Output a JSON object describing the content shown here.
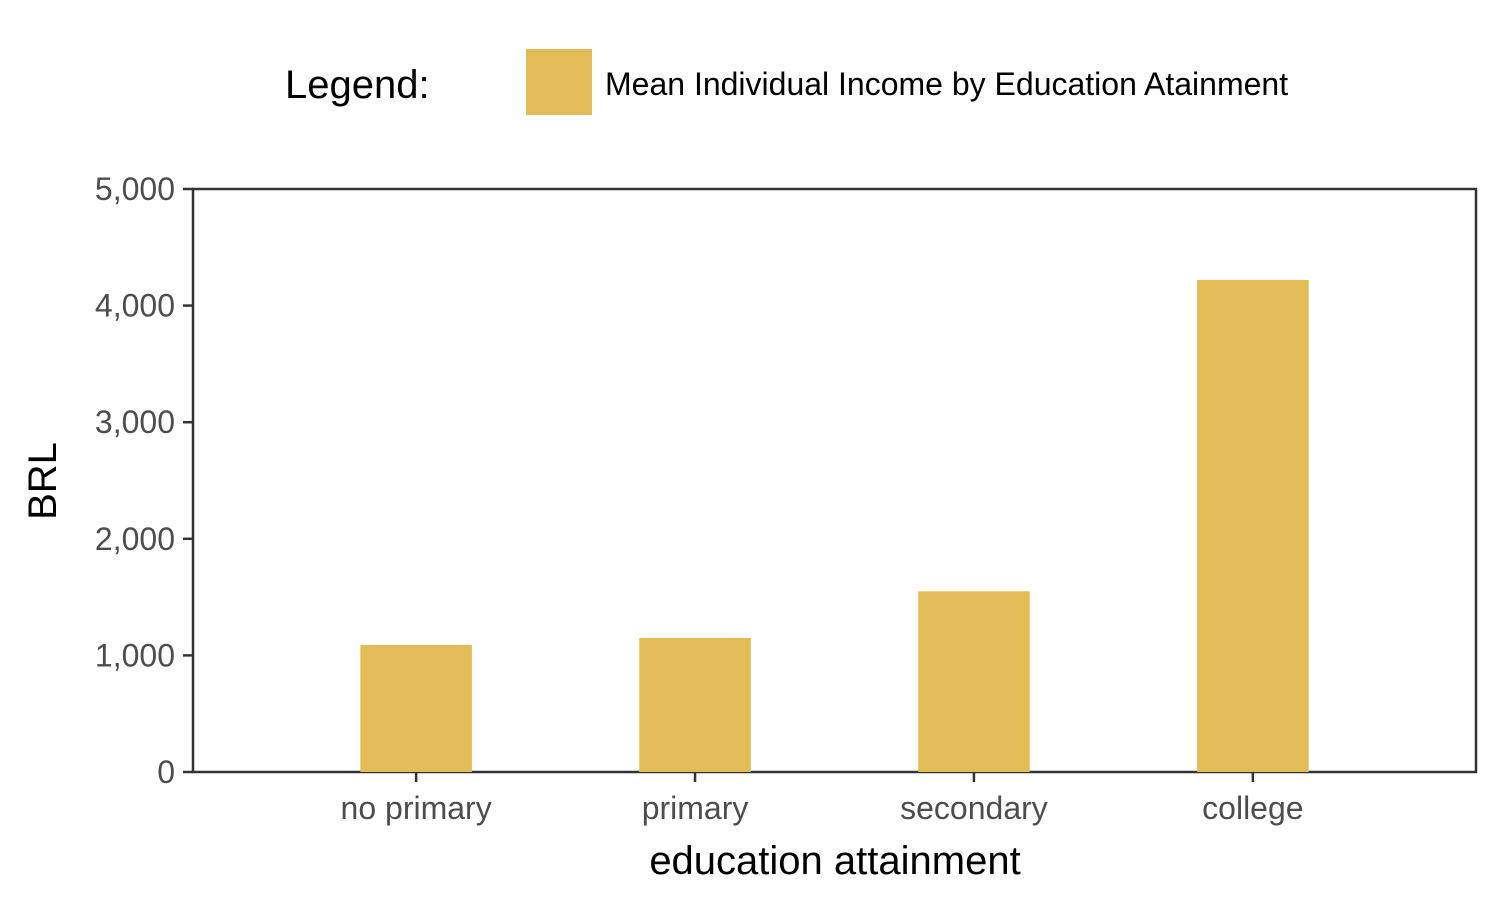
{
  "chart_data": {
    "type": "bar",
    "categories": [
      "no primary",
      "primary",
      "secondary",
      "college"
    ],
    "values": [
      1090,
      1150,
      1550,
      4220
    ],
    "series": [
      {
        "name": "Mean Individual Income by Education Atainment",
        "values": [
          1090,
          1150,
          1550,
          4220
        ]
      }
    ],
    "title": "",
    "xlabel": "education attainment",
    "ylabel": "BRL",
    "ylim": [
      0,
      5000
    ],
    "yticks": [
      0,
      1000,
      2000,
      3000,
      4000,
      5000
    ],
    "ytick_labels": [
      "0",
      "1,000",
      "2,000",
      "3,000",
      "4,000",
      "5,000"
    ],
    "grid": false,
    "legend": {
      "title": "Legend:",
      "position": "top",
      "entries": [
        "Mean Individual Income by Education Atainment"
      ]
    },
    "colors": {
      "bar": "#E2BC56",
      "axis": "#333333",
      "tick_text": "#4d4d4d"
    }
  }
}
